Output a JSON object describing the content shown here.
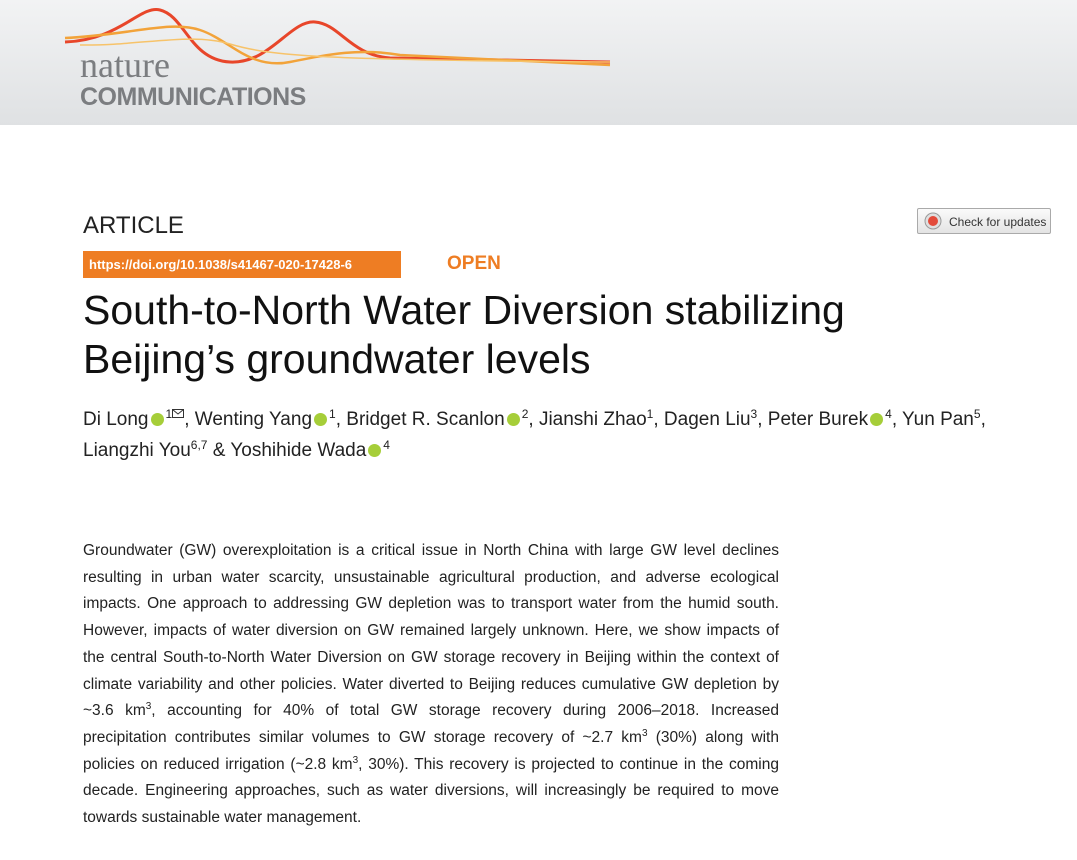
{
  "header": {
    "logo_top": "nature",
    "logo_bottom": "COMMUNICATIONS"
  },
  "article_type": "ARTICLE",
  "check_updates": "Check for updates",
  "doi": "https://doi.org/10.1038/s41467-020-17428-6",
  "access": "OPEN",
  "title_lines": [
    "South-to-North Water Diversion stabilizing",
    "Beijing’s groundwater levels"
  ],
  "authors": [
    {
      "name": "Di Long",
      "orcid": true,
      "sup": "1",
      "mail": true,
      "sep": ", "
    },
    {
      "name": "Wenting Yang",
      "orcid": true,
      "sup": "1",
      "sep": ", "
    },
    {
      "name": "Bridget R. Scanlon",
      "orcid": true,
      "sup": "2",
      "sep": ", "
    },
    {
      "name": "Jianshi Zhao",
      "sup": "1",
      "sep": ", "
    },
    {
      "name": "Dagen Liu",
      "sup": "3",
      "sep": ", "
    },
    {
      "name": "Peter Burek",
      "orcid": true,
      "sup": "4",
      "sep": ", "
    },
    {
      "name": "Yun Pan",
      "sup": "5",
      "sep": ", "
    },
    {
      "name": "Liangzhi You",
      "sup": "6,7",
      "sep": " & "
    },
    {
      "name": "Yoshihide Wada",
      "orcid": true,
      "sup": "4"
    }
  ],
  "abstract": [
    {
      "text": "Groundwater (GW) overexploitation is a critical issue in North China with large GW level declines resulting in urban water scarcity, unsustainable agricultural production, and adverse ecological impacts. One approach to addressing GW depletion was to transport water from the humid south. However, impacts of water diversion on GW remained largely unknown. Here, we show impacts of the central South-to-North Water Diversion on GW storage recovery in Beijing within the context of climate variability and other policies. Water diverted to Beijing reduces cumulative GW depletion by ~3.6 km"
    },
    {
      "sup": "3"
    },
    {
      "text": ", accounting for 40% of total GW storage recovery during 2006–2018. Increased precipitation contributes similar volumes to GW storage recovery of ~2.7 km"
    },
    {
      "sup": "3"
    },
    {
      "text": " (30%) along with policies on reduced irrigation (~2.8 km"
    },
    {
      "sup": "3"
    },
    {
      "text": ", 30%). This recovery is projected to continue in the coming decade. Engineering approaches, such as water diversions, will increasingly be required to move towards sustainable water management."
    }
  ]
}
